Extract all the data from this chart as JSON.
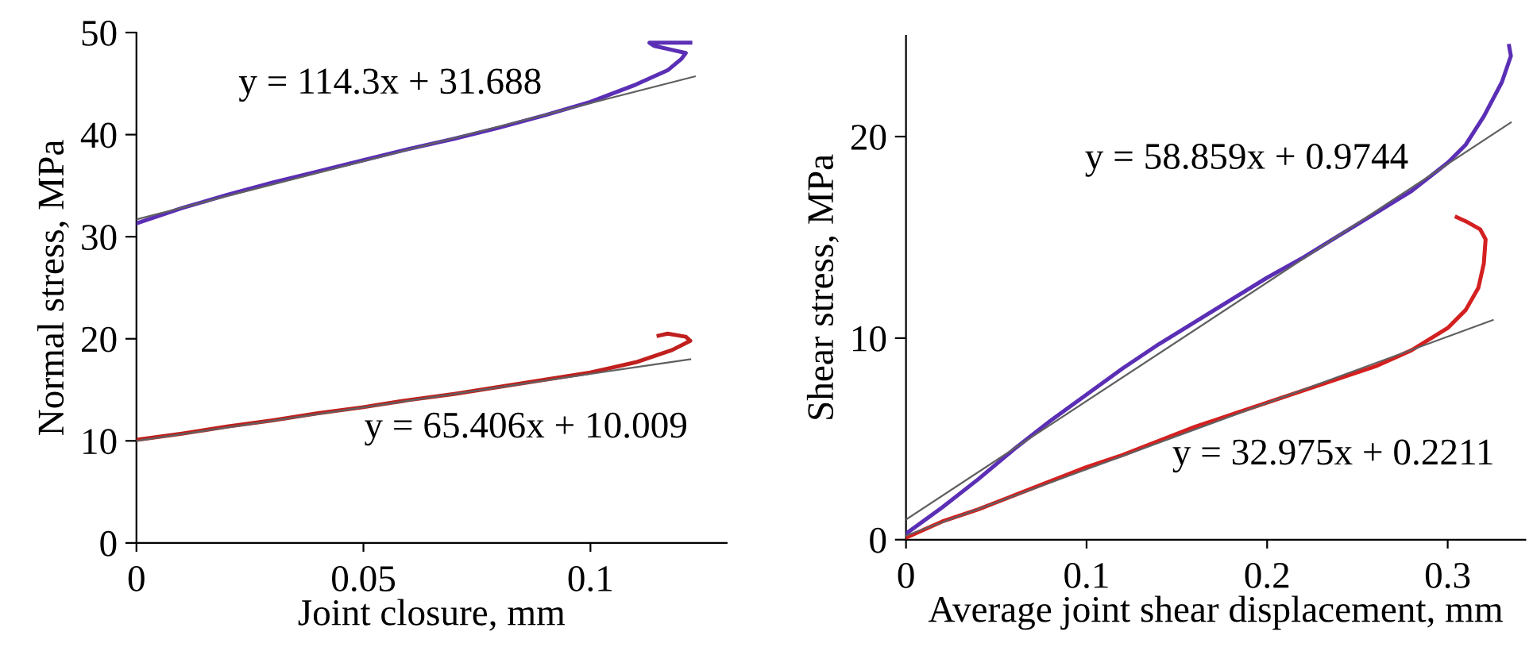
{
  "chart_data": [
    {
      "type": "line",
      "xlabel": "Joint closure, mm",
      "ylabel": "Normal stress, MPa",
      "xlim": [
        0,
        0.13
      ],
      "ylim": [
        0,
        50
      ],
      "xticks": [
        0,
        0.05,
        0.1
      ],
      "yticks": [
        0,
        10,
        20,
        30,
        40,
        50
      ],
      "grid": false,
      "legend": false,
      "marker": "none",
      "series": [
        {
          "color": "#5b2fb5",
          "x": [
            0,
            0.01,
            0.02,
            0.03,
            0.04,
            0.05,
            0.06,
            0.07,
            0.08,
            0.09,
            0.1,
            0.11,
            0.117,
            0.12,
            0.121,
            0.118,
            0.114,
            0.113,
            0.122
          ],
          "values": [
            31.3,
            32.8,
            34.1,
            35.3,
            36.4,
            37.5,
            38.6,
            39.6,
            40.7,
            41.9,
            43.2,
            44.9,
            46.3,
            47.4,
            48.0,
            48.3,
            48.7,
            49.0,
            49.0
          ]
        },
        {
          "color": "#c0201e",
          "x": [
            0,
            0.01,
            0.02,
            0.03,
            0.04,
            0.05,
            0.06,
            0.07,
            0.08,
            0.09,
            0.1,
            0.11,
            0.118,
            0.122,
            0.121,
            0.117,
            0.115
          ],
          "values": [
            10.1,
            10.7,
            11.4,
            12.0,
            12.7,
            13.3,
            14.0,
            14.6,
            15.3,
            16.0,
            16.7,
            17.7,
            18.9,
            19.8,
            20.2,
            20.5,
            20.3
          ]
        },
        {
          "color": "#606060",
          "x": [
            0,
            0.123
          ],
          "values": [
            31.7,
            45.7
          ]
        },
        {
          "color": "#606060",
          "x": [
            0,
            0.122
          ],
          "values": [
            10.0,
            18.0
          ]
        }
      ],
      "annotations": [
        "y = 114.3x + 31.688",
        "y = 65.406x + 10.009"
      ]
    },
    {
      "type": "line",
      "xlabel": "Average joint shear displacement, mm",
      "ylabel": "Shear stress, MPa",
      "xlim": [
        0,
        0.343
      ],
      "ylim": [
        0,
        25
      ],
      "xticks": [
        0,
        0.1,
        0.2,
        0.3
      ],
      "yticks": [
        0,
        10,
        20
      ],
      "grid": false,
      "legend": false,
      "marker": "none",
      "series": [
        {
          "color": "#5b2fb5",
          "x": [
            0,
            0.02,
            0.04,
            0.06,
            0.08,
            0.1,
            0.12,
            0.14,
            0.16,
            0.18,
            0.2,
            0.22,
            0.24,
            0.26,
            0.28,
            0.3,
            0.31,
            0.32,
            0.33,
            0.335,
            0.334
          ],
          "values": [
            0.3,
            1.6,
            3.0,
            4.5,
            5.9,
            7.2,
            8.5,
            9.7,
            10.8,
            11.9,
            13.0,
            14.0,
            15.1,
            16.2,
            17.3,
            18.7,
            19.6,
            21.0,
            22.7,
            24.0,
            24.5
          ]
        },
        {
          "color": "#d42020",
          "x": [
            0,
            0.02,
            0.04,
            0.06,
            0.08,
            0.1,
            0.12,
            0.14,
            0.16,
            0.18,
            0.2,
            0.22,
            0.24,
            0.26,
            0.28,
            0.3,
            0.31,
            0.317,
            0.32,
            0.321,
            0.318,
            0.31,
            0.305
          ],
          "values": [
            0.1,
            0.9,
            1.5,
            2.2,
            2.9,
            3.6,
            4.2,
            4.9,
            5.6,
            6.2,
            6.8,
            7.4,
            8.0,
            8.6,
            9.4,
            10.5,
            11.4,
            12.5,
            13.7,
            14.9,
            15.4,
            15.8,
            16.0
          ]
        },
        {
          "color": "#606060",
          "x": [
            0,
            0.335
          ],
          "values": [
            1.0,
            20.7
          ]
        },
        {
          "color": "#606060",
          "x": [
            0,
            0.325
          ],
          "values": [
            0.2,
            10.9
          ]
        }
      ],
      "annotations": [
        "y = 58.859x + 0.9744",
        "y = 32.975x + 0.2211"
      ]
    }
  ]
}
